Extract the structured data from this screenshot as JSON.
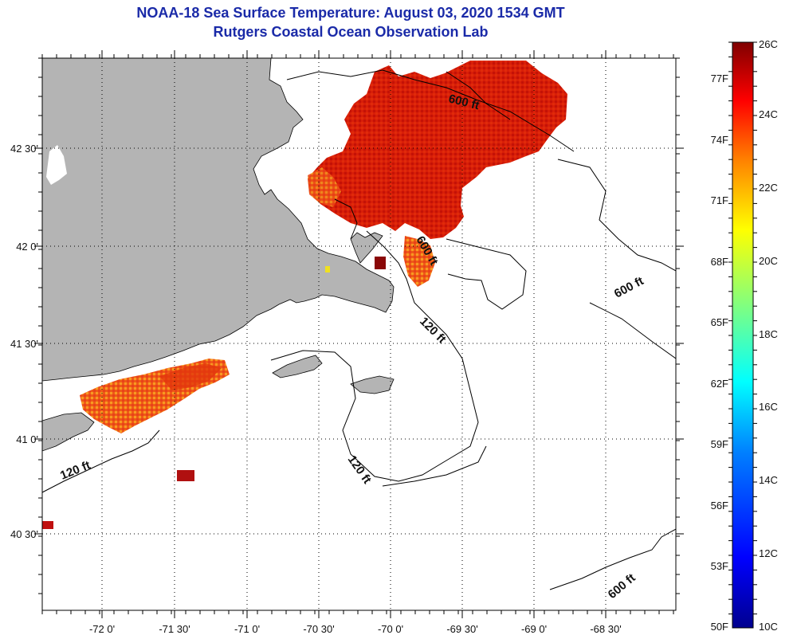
{
  "header": {
    "title": "NOAA-18 Sea Surface Temperature:  August 03, 2020 1534 GMT",
    "subtitle": "Rutgers Coastal Ocean Observation Lab"
  },
  "map": {
    "longitude_labels": [
      "-72 0'",
      "-71 30'",
      "-71 0'",
      "-70 30'",
      "-70 0'",
      "-69 30'",
      "-69 0'",
      "-68 30'"
    ],
    "latitude_labels": [
      "42 30'",
      "42 0'",
      "41 30'",
      "41 0'",
      "40 30'"
    ],
    "contour_labels": [
      "600 ft",
      "600 ft",
      "600 ft",
      "600 ft",
      "120 ft",
      "120 ft",
      "120 ft"
    ],
    "colors": {
      "land": "#b4b4b4",
      "ocean": "#ffffff",
      "coast": "#000000",
      "grid": "#000000"
    }
  },
  "colorbar": {
    "celsius_labels": [
      "26C",
      "24C",
      "22C",
      "20C",
      "18C",
      "16C",
      "14C",
      "12C",
      "10C"
    ],
    "fahrenheit_labels": [
      "77F",
      "74F",
      "71F",
      "68F",
      "65F",
      "62F",
      "59F",
      "56F",
      "53F",
      "50F"
    ],
    "colors": [
      "#00008f",
      "#0000ff",
      "#0080ff",
      "#00ffff",
      "#80ff80",
      "#ffff00",
      "#ff8000",
      "#ff0000",
      "#800000"
    ]
  }
}
